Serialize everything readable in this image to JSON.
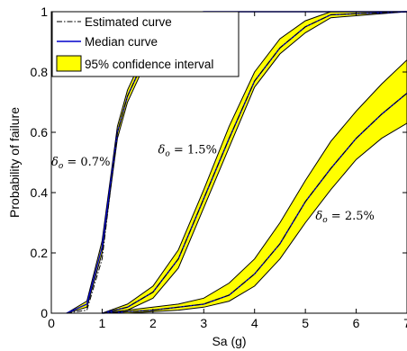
{
  "chart_data": {
    "type": "area",
    "title": "",
    "xlabel": "Sa (g)",
    "ylabel": "Probability of failure",
    "xlim": [
      0,
      7
    ],
    "ylim": [
      0,
      1
    ],
    "xticks": [
      "0",
      "1",
      "2",
      "3",
      "4",
      "5",
      "6",
      "7"
    ],
    "yticks": [
      "0",
      "0.2",
      "0.4",
      "0.6",
      "0.8",
      "1"
    ],
    "grid": false,
    "legend_position": "top-left",
    "legend": [
      {
        "label": "Estimated curve",
        "style": "dash-dot",
        "color": "#000000"
      },
      {
        "label": "Median curve",
        "style": "solid",
        "color": "#0000cc"
      },
      {
        "label": "95% confidence interval",
        "style": "fill",
        "color": "#ffff00"
      }
    ],
    "annotations": [
      {
        "base": "δ",
        "sub": "o",
        "rest": " = 0.7%",
        "x": 0.0,
        "y": 0.49
      },
      {
        "base": "δ",
        "sub": "o",
        "rest": " = 1.5%",
        "x": 2.1,
        "y": 0.53
      },
      {
        "base": "δ",
        "sub": "o",
        "rest": " = 2.5%",
        "x": 5.2,
        "y": 0.31
      }
    ],
    "curves": [
      {
        "name": "δo = 0.7%",
        "x": [
          0.3,
          0.7,
          1.0,
          1.3,
          1.5,
          1.8,
          2.0,
          2.3,
          2.6,
          3.0,
          7.0
        ],
        "median": [
          0.0,
          0.03,
          0.22,
          0.6,
          0.72,
          0.83,
          0.9,
          0.96,
          0.99,
          1.0,
          1.0
        ],
        "estimated": [
          0.0,
          0.01,
          0.18,
          0.6,
          0.72,
          0.83,
          0.9,
          0.96,
          0.99,
          1.0,
          1.0
        ],
        "lower": [
          0.0,
          0.02,
          0.2,
          0.58,
          0.7,
          0.81,
          0.88,
          0.95,
          0.985,
          1.0,
          1.0
        ],
        "upper": [
          0.0,
          0.04,
          0.24,
          0.62,
          0.74,
          0.85,
          0.92,
          0.97,
          0.995,
          1.0,
          1.0
        ]
      },
      {
        "name": "δo = 1.5%",
        "x": [
          1.0,
          1.5,
          2.0,
          2.5,
          3.0,
          3.5,
          4.0,
          4.5,
          5.0,
          5.5,
          7.0
        ],
        "median": [
          0.0,
          0.02,
          0.07,
          0.18,
          0.38,
          0.58,
          0.77,
          0.88,
          0.95,
          0.99,
          1.0
        ],
        "estimated": [
          0.0,
          0.02,
          0.07,
          0.18,
          0.38,
          0.58,
          0.77,
          0.88,
          0.95,
          0.99,
          1.0
        ],
        "lower": [
          0.0,
          0.01,
          0.05,
          0.15,
          0.35,
          0.55,
          0.75,
          0.86,
          0.93,
          0.98,
          1.0
        ],
        "upper": [
          0.0,
          0.03,
          0.09,
          0.21,
          0.41,
          0.62,
          0.8,
          0.91,
          0.97,
          1.0,
          1.0
        ]
      },
      {
        "name": "δo = 2.5%",
        "x": [
          1.0,
          1.5,
          2.0,
          2.5,
          3.0,
          3.5,
          4.0,
          4.5,
          5.0,
          5.5,
          6.0,
          6.5,
          7.0
        ],
        "median": [
          0.0,
          0.005,
          0.01,
          0.02,
          0.03,
          0.06,
          0.13,
          0.23,
          0.37,
          0.48,
          0.58,
          0.66,
          0.73
        ],
        "estimated": [
          0.0,
          0.005,
          0.01,
          0.02,
          0.03,
          0.06,
          0.13,
          0.23,
          0.37,
          0.48,
          0.58,
          0.66,
          0.73
        ],
        "lower": [
          0.0,
          0.0,
          0.005,
          0.01,
          0.02,
          0.04,
          0.09,
          0.18,
          0.3,
          0.41,
          0.51,
          0.58,
          0.63
        ],
        "upper": [
          0.0,
          0.01,
          0.02,
          0.03,
          0.05,
          0.1,
          0.18,
          0.3,
          0.44,
          0.57,
          0.67,
          0.76,
          0.84
        ]
      }
    ]
  }
}
